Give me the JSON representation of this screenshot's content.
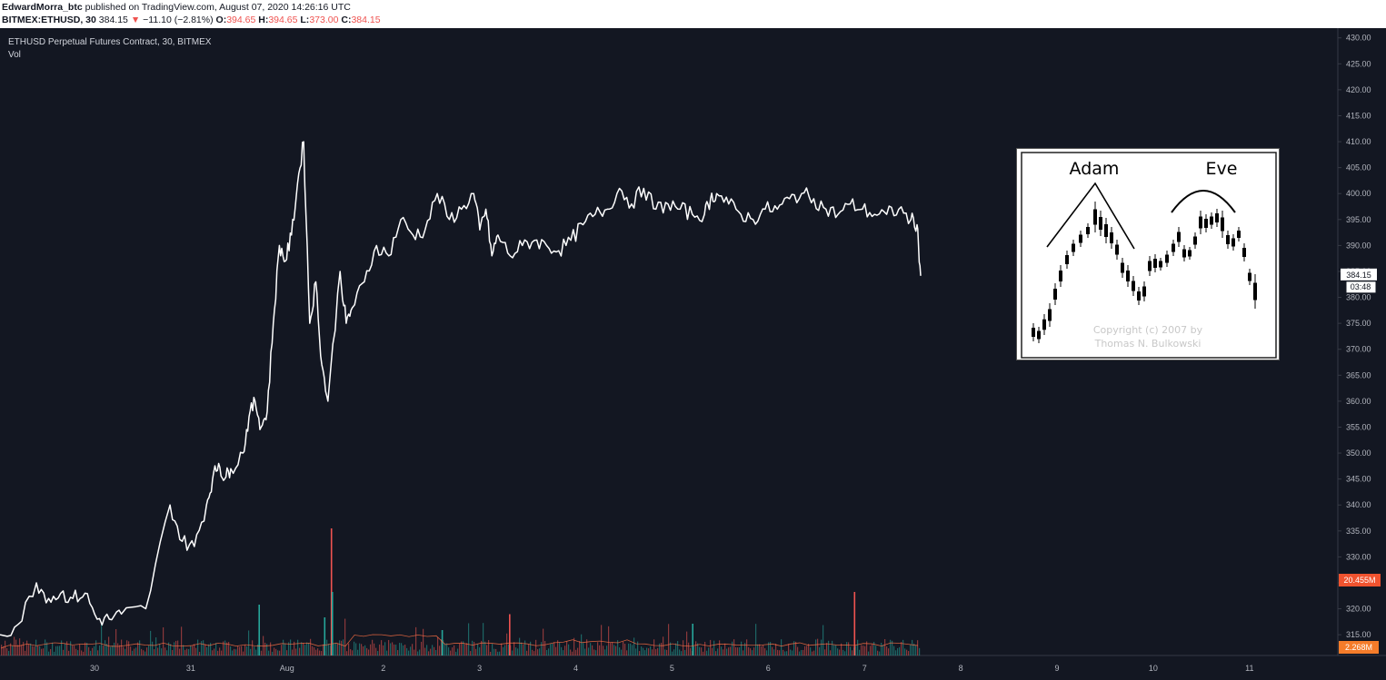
{
  "header": {
    "author": "EdwardMorra_btc",
    "published_text": "published on TradingView.com, August 07, 2020 14:26:16 UTC",
    "symbol": "BITMEX:ETHUSD, 30",
    "last": "384.15",
    "change_arrow": "▼",
    "change": "−11.10 (−2.81%)",
    "o_label": "O:",
    "o_value": "394.65",
    "h_label": "H:",
    "h_value": "394.65",
    "l_label": "L:",
    "l_value": "373.00",
    "c_label": "C:",
    "c_value": "384.15"
  },
  "chart_title": "ETHUSD Perpetual Futures Contract, 30, BITMEX",
  "vol_label": "Vol",
  "price_badges": {
    "last_price": "384.15",
    "countdown": "03:48",
    "vol_last": "20.455M",
    "vol_ma": "2.268M"
  },
  "inset": {
    "left_label": "Adam",
    "right_label": "Eve",
    "copyright_line1": "Copyright (c) 2007 by",
    "copyright_line2": "Thomas N. Bulkowski"
  },
  "colors": {
    "background": "#131722",
    "price_line": "#ffffff",
    "volume_up": "#26a69a",
    "volume_down": "#ef5350",
    "volume_ma": "#ff7043",
    "badge_red": "#f0532f",
    "badge_orange": "#f57c2a",
    "axis_text": "#b2b5be"
  },
  "chart_data": {
    "type": "line",
    "title": "ETHUSD Perpetual Futures Contract, 30, BITMEX",
    "y_axis": {
      "ticks": [
        "315.00",
        "320.00",
        "325.00",
        "330.00",
        "335.00",
        "340.00",
        "345.00",
        "350.00",
        "355.00",
        "360.00",
        "365.00",
        "370.00",
        "375.00",
        "380.00",
        "385.00",
        "390.00",
        "395.00",
        "400.00",
        "405.00",
        "410.00",
        "415.00",
        "420.00",
        "425.00",
        "430.00"
      ],
      "ylim": [
        311,
        431
      ]
    },
    "x_axis": {
      "ticks": [
        "30",
        "31",
        "Aug",
        "2",
        "3",
        "4",
        "5",
        "6",
        "7",
        "8",
        "9",
        "10",
        "11"
      ]
    },
    "price_series": {
      "name": "ETHUSD",
      "x": [
        0,
        0.15,
        0.3,
        0.4,
        0.5,
        0.6,
        0.7,
        0.8,
        0.9,
        1.0,
        1.2,
        1.4,
        1.5,
        1.6,
        1.7,
        1.75,
        1.8,
        1.85,
        1.9,
        2.0,
        2.05,
        2.1,
        2.15,
        2.2,
        2.25,
        2.3,
        2.35,
        2.4,
        2.45,
        2.5,
        2.55,
        2.6,
        2.65,
        2.7,
        2.8,
        2.85,
        2.9,
        3.0,
        3.1,
        3.2,
        3.3,
        3.4,
        3.5,
        3.6,
        3.7,
        3.8,
        3.9,
        3.95,
        4.0,
        4.05,
        4.1,
        4.2,
        4.3,
        4.4,
        4.5,
        4.6,
        4.7,
        4.8,
        4.9,
        5.0,
        5.1,
        5.2,
        5.3,
        5.4,
        5.5,
        5.6,
        5.7,
        5.8,
        5.85,
        5.9,
        6.0,
        6.1,
        6.2,
        6.3,
        6.4,
        6.5,
        6.6,
        6.7,
        6.8,
        6.9,
        7.0,
        7.1,
        7.2,
        7.3,
        7.4,
        7.5,
        7.55,
        7.58
      ],
      "values": [
        315,
        317,
        325,
        322,
        323,
        322,
        323,
        318,
        318,
        319,
        320,
        340,
        333,
        332,
        340,
        345,
        348,
        345,
        347,
        350,
        357,
        360,
        355,
        358,
        375,
        390,
        387,
        392,
        402,
        410,
        375,
        383,
        367,
        360,
        385,
        375,
        378,
        383,
        390,
        388,
        395,
        392,
        393,
        400,
        395,
        397,
        400,
        393,
        397,
        388,
        392,
        388,
        390,
        391,
        390,
        389,
        391,
        394,
        396,
        397,
        401,
        398,
        401,
        397,
        398,
        397,
        396,
        396,
        399,
        400,
        398,
        396,
        395,
        397,
        397,
        399,
        400,
        399,
        397,
        396,
        398,
        397,
        396,
        396,
        397,
        395,
        394,
        384.15
      ]
    },
    "volume_series": {
      "name": "Vol",
      "spikes": [
        {
          "x": 2.15,
          "value": 20.0,
          "dir": "down"
        },
        {
          "x": 2.16,
          "value": 10.0,
          "dir": "up"
        },
        {
          "x": 2.08,
          "value": 6.0,
          "dir": "up"
        },
        {
          "x": 1.4,
          "value": 8.0,
          "dir": "up"
        },
        {
          "x": 4.0,
          "value": 6.5,
          "dir": "down"
        },
        {
          "x": 5.9,
          "value": 5.0,
          "dir": "up"
        },
        {
          "x": 3.3,
          "value": 4.0,
          "dir": "up"
        },
        {
          "x": 7.58,
          "value": 10.0,
          "dir": "down"
        }
      ]
    },
    "inset_sketch": {
      "type": "candlestick_sketch",
      "labels": [
        "Adam",
        "Eve"
      ]
    }
  }
}
